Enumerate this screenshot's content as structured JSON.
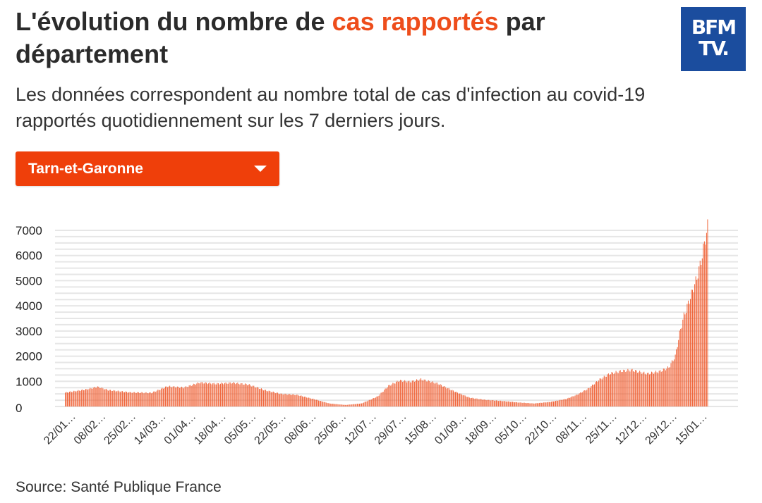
{
  "header": {
    "title_before": "L'évolution du nombre de ",
    "title_accent": "cas rapportés",
    "title_after": " par département",
    "subtitle": "Les données correspondent au nombre total de cas d'infection au covid-19 rapportés quotidiennement sur les 7 derniers jours.",
    "logo_line1": "BFM",
    "logo_line2": "TV."
  },
  "dropdown": {
    "selected": "Tarn-et-Garonne"
  },
  "footer": {
    "source": "Source: Santé Publique France"
  },
  "colors": {
    "accent": "#ee4d1b",
    "bar": "#ef5a2c",
    "brand": "#1b4d9e",
    "dropdown": "#ef3f0a"
  },
  "chart_data": {
    "type": "bar",
    "title": "",
    "xlabel": "",
    "ylabel": "",
    "ylim": [
      0,
      7000
    ],
    "yticks": [
      0,
      1000,
      2000,
      3000,
      4000,
      5000,
      6000,
      7000
    ],
    "grid": true,
    "xtick_labels": [
      "22/01…",
      "08/02…",
      "25/02…",
      "14/03…",
      "01/04…",
      "18/04…",
      "05/05…",
      "22/05…",
      "08/06…",
      "25/06…",
      "12/07…",
      "29/07…",
      "15/08…",
      "01/09…",
      "18/09…",
      "05/10…",
      "22/10…",
      "08/11…",
      "25/11…",
      "12/12…",
      "29/12…",
      "15/01…"
    ],
    "series_note": "Daily 7-day rolling cases; values estimated from shape, one bar per day",
    "keypoints": [
      [
        0,
        550
      ],
      [
        20,
        680
      ],
      [
        30,
        780
      ],
      [
        40,
        650
      ],
      [
        60,
        560
      ],
      [
        80,
        540
      ],
      [
        95,
        800
      ],
      [
        110,
        750
      ],
      [
        125,
        950
      ],
      [
        140,
        900
      ],
      [
        155,
        940
      ],
      [
        170,
        870
      ],
      [
        185,
        650
      ],
      [
        200,
        500
      ],
      [
        215,
        460
      ],
      [
        230,
        300
      ],
      [
        245,
        120
      ],
      [
        260,
        60
      ],
      [
        275,
        120
      ],
      [
        290,
        400
      ],
      [
        300,
        820
      ],
      [
        310,
        1030
      ],
      [
        320,
        980
      ],
      [
        330,
        1080
      ],
      [
        345,
        920
      ],
      [
        360,
        620
      ],
      [
        375,
        350
      ],
      [
        390,
        260
      ],
      [
        405,
        220
      ],
      [
        420,
        160
      ],
      [
        435,
        120
      ],
      [
        450,
        180
      ],
      [
        465,
        300
      ],
      [
        475,
        470
      ],
      [
        485,
        700
      ],
      [
        495,
        1050
      ],
      [
        505,
        1300
      ],
      [
        515,
        1400
      ],
      [
        525,
        1450
      ],
      [
        540,
        1300
      ],
      [
        552,
        1400
      ],
      [
        560,
        1550
      ],
      [
        566,
        2000
      ],
      [
        570,
        2900
      ],
      [
        574,
        3600
      ],
      [
        578,
        4100
      ],
      [
        582,
        4600
      ],
      [
        586,
        5100
      ],
      [
        590,
        5800
      ],
      [
        594,
        6700
      ],
      [
        596,
        7150
      ]
    ]
  }
}
